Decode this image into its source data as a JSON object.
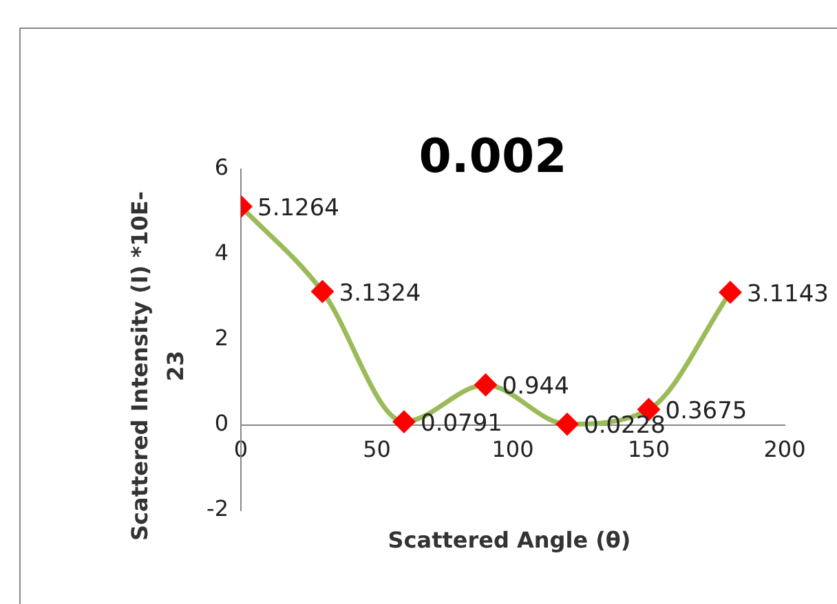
{
  "chart_data": {
    "type": "line",
    "title": "0.002",
    "xlabel": "Scattered Angle (θ)",
    "ylabel": "Scattered Intensity (I) *10E-23",
    "x": [
      0,
      30,
      60,
      90,
      120,
      150,
      180
    ],
    "series": [
      {
        "color": "#9bbb59",
        "colors": [
          "#ff0000",
          "#ff0000",
          "#ff0000",
          "#ff0000",
          "#ff0000",
          "#ff0000",
          "#ff0000"
        ],
        "values": [
          5.1264,
          3.1324,
          0.0791,
          0.944,
          0.0228,
          0.3675,
          3.1143
        ]
      }
    ],
    "marker": "diamond",
    "data_labels": true,
    "xlim": [
      0,
      200
    ],
    "xticks": [
      0,
      50,
      100,
      150,
      200
    ],
    "ylim": [
      -2,
      6
    ],
    "yticks": [
      -2,
      0,
      2,
      4,
      6
    ],
    "grid": false,
    "legend": false
  }
}
